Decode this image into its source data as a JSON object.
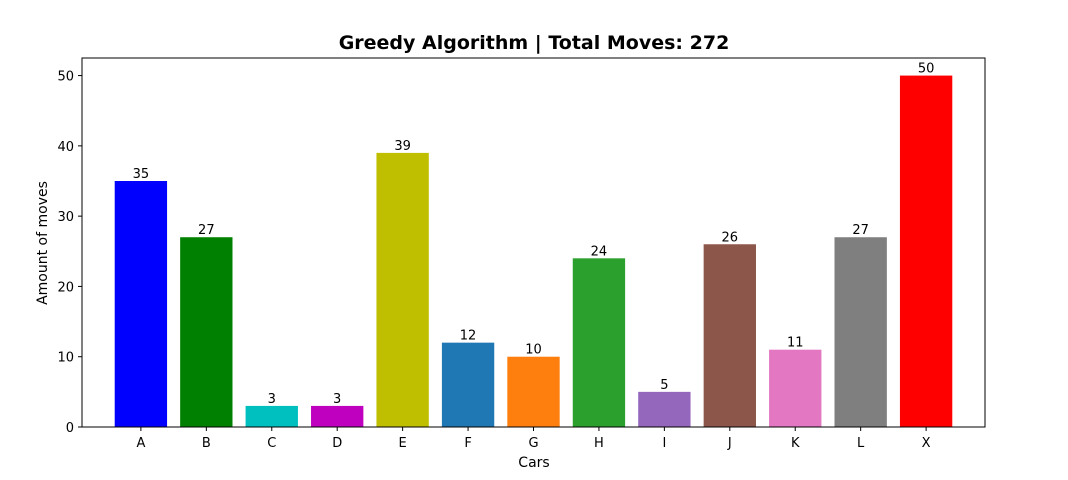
{
  "chart_data": {
    "type": "bar",
    "title": "Greedy Algorithm | Total Moves: 272",
    "xlabel": "Cars",
    "ylabel": "Amount of moves",
    "categories": [
      "A",
      "B",
      "C",
      "D",
      "E",
      "F",
      "G",
      "H",
      "I",
      "J",
      "K",
      "L",
      "X"
    ],
    "values": [
      35,
      27,
      3,
      3,
      39,
      12,
      10,
      24,
      5,
      26,
      11,
      27,
      50
    ],
    "colors": [
      "#0000ff",
      "#008000",
      "#00bfbf",
      "#bf00bf",
      "#bfbf00",
      "#1f77b4",
      "#ff7f0e",
      "#2ca02c",
      "#9467bd",
      "#8c564b",
      "#e377c2",
      "#7f7f7f",
      "#ff0000"
    ],
    "ylim": [
      0,
      52.5
    ],
    "yticks": [
      0,
      10,
      20,
      30,
      40,
      50
    ],
    "grid": false,
    "legend": false
  }
}
